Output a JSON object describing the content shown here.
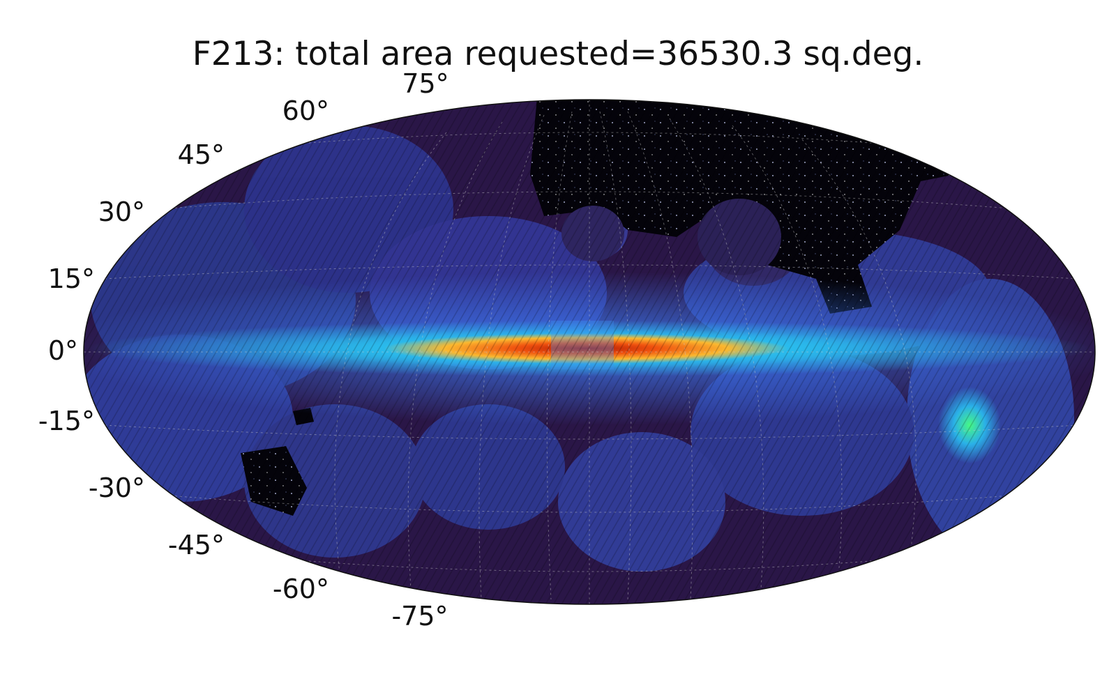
{
  "title": "F213: total area requested=36530.3 sq.deg.",
  "projection": "mollweide",
  "colormap": "turbo",
  "background_color": "#ffffff",
  "empty_region_color": "#000000",
  "grid": true,
  "latitude_labels": [
    {
      "value": 75,
      "text": "75°"
    },
    {
      "value": 60,
      "text": "60°"
    },
    {
      "value": 45,
      "text": "45°"
    },
    {
      "value": 30,
      "text": "30°"
    },
    {
      "value": 15,
      "text": "15°"
    },
    {
      "value": 0,
      "text": "0°"
    },
    {
      "value": -15,
      "text": "-15°"
    },
    {
      "value": -30,
      "text": "-30°"
    },
    {
      "value": -45,
      "text": "-45°"
    },
    {
      "value": -60,
      "text": "-60°"
    },
    {
      "value": -75,
      "text": "-75°"
    }
  ]
}
